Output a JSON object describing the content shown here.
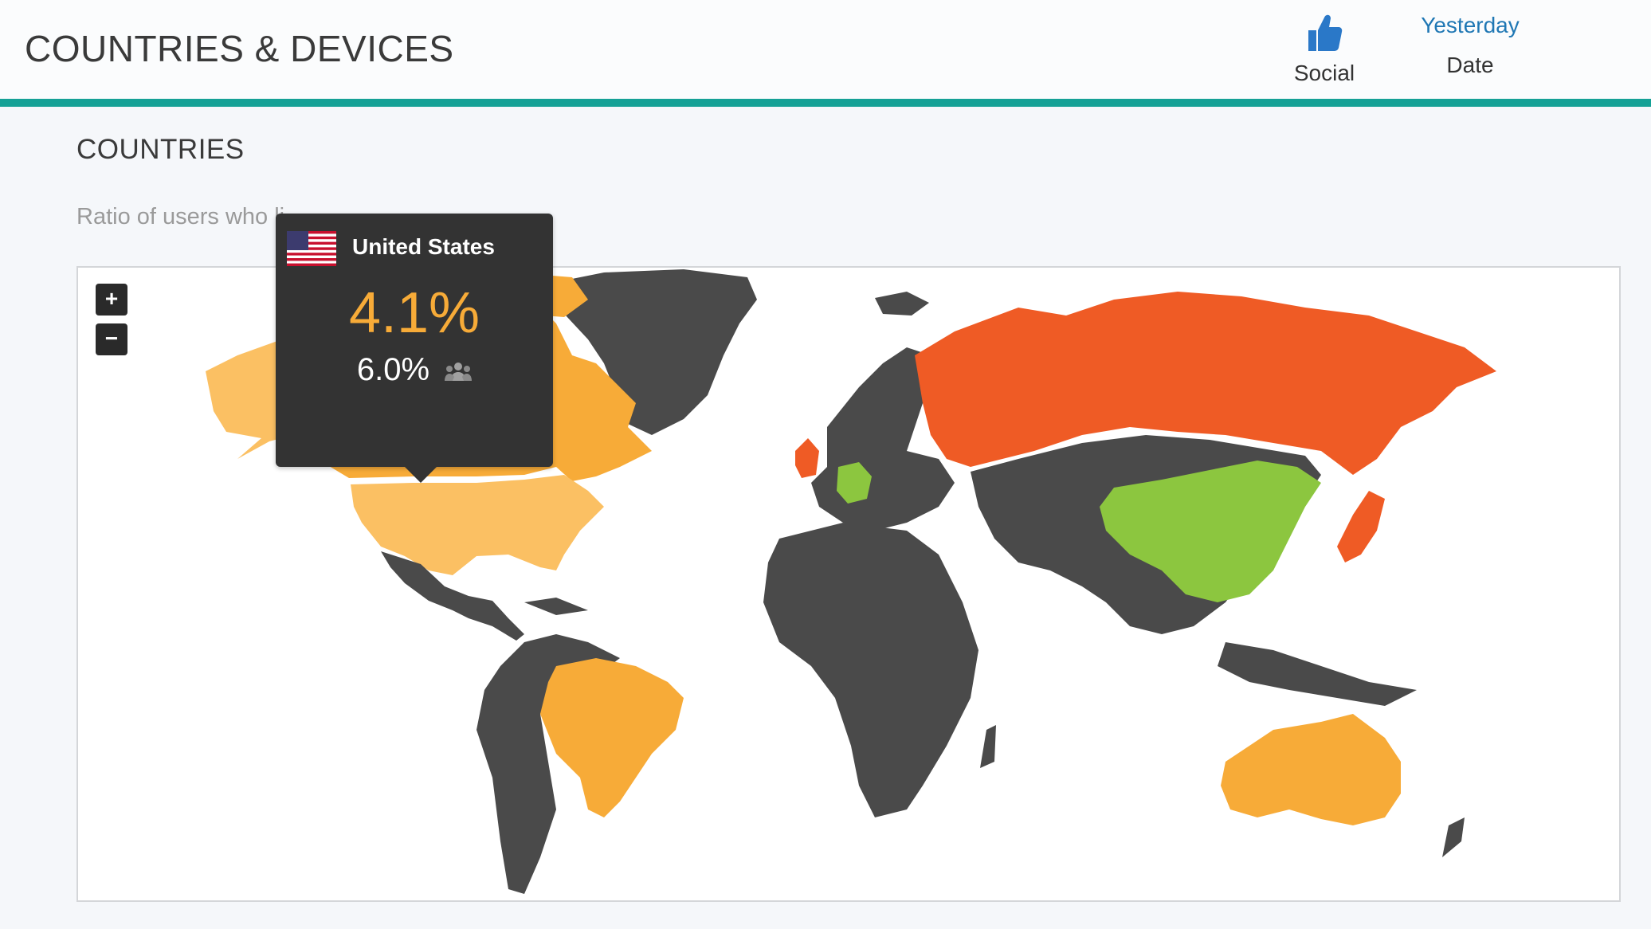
{
  "header": {
    "title": "COUNTRIES & DEVICES",
    "social": {
      "label": "Social",
      "icon": "thumbs-up-icon"
    },
    "date": {
      "value": "Yesterday",
      "label": "Date"
    }
  },
  "section": {
    "title": "COUNTRIES",
    "subtitle": "Ratio of users who li"
  },
  "map": {
    "zoom_in_label": "+",
    "zoom_out_label": "−",
    "colors": {
      "no_data": "#4a4a4a",
      "light_orange": "#fbc063",
      "orange": "#f7ab38",
      "red_orange": "#ef5b25",
      "green": "#8cc63f",
      "header_border": "#15a196"
    },
    "regions": [
      {
        "name": "Russia",
        "color_key": "red_orange"
      },
      {
        "name": "United Kingdom",
        "color_key": "red_orange"
      },
      {
        "name": "Japan",
        "color_key": "red_orange"
      },
      {
        "name": "United States",
        "color_key": "light_orange"
      },
      {
        "name": "Canada",
        "color_key": "orange"
      },
      {
        "name": "Brazil",
        "color_key": "orange"
      },
      {
        "name": "Australia",
        "color_key": "orange"
      },
      {
        "name": "China",
        "color_key": "green"
      },
      {
        "name": "Germany",
        "color_key": "green"
      }
    ]
  },
  "tooltip": {
    "country": "United States",
    "primary_value": "4.1%",
    "secondary_value": "6.0%",
    "flag_icon": "us-flag-icon",
    "users_icon": "users-icon"
  }
}
